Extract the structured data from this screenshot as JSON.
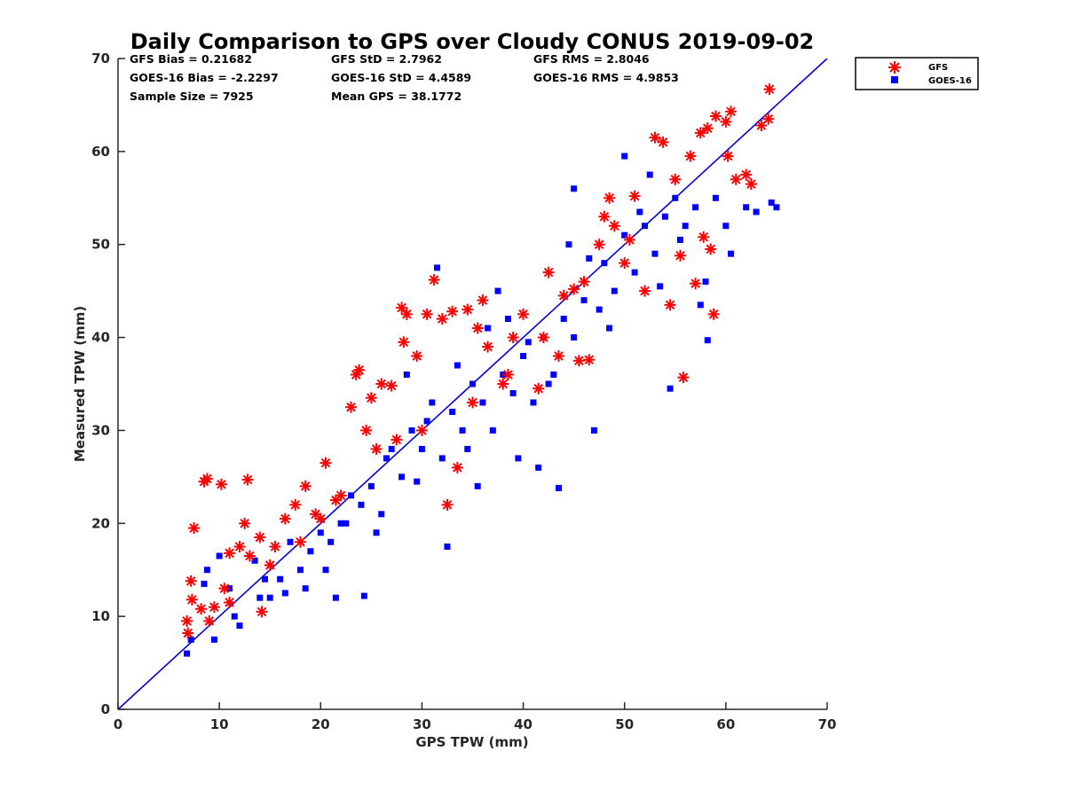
{
  "chart_data": {
    "type": "scatter",
    "title": "Daily Comparison to GPS over Cloudy CONUS 2019-09-02",
    "xlabel": "GPS TPW (mm)",
    "ylabel": "Measured TPW (mm)",
    "xlim": [
      0,
      70
    ],
    "ylim": [
      0,
      70
    ],
    "xticks": [
      "0",
      "10",
      "20",
      "30",
      "40",
      "50",
      "60",
      "70"
    ],
    "yticks": [
      "0",
      "10",
      "20",
      "30",
      "40",
      "50",
      "60",
      "70"
    ],
    "grid": false,
    "legend_position": "outside-top-right",
    "stats": [
      "GFS Bias = 0.21682",
      "GFS StD = 2.7962",
      "GFS RMS = 2.8046",
      "GOES-16 Bias = -2.2297",
      "GOES-16 StD = 4.4589",
      "GOES-16 RMS = 4.9853",
      "Sample Size = 7925",
      "Mean GPS = 38.1772"
    ],
    "reference_line": {
      "x": [
        0,
        70
      ],
      "y": [
        0,
        70
      ],
      "color": "#0000e0"
    },
    "series": [
      {
        "name": "GFS",
        "marker": "asterisk",
        "color": "#ff0000",
        "points": [
          [
            6.8,
            9.5
          ],
          [
            6.9,
            8.2
          ],
          [
            7.2,
            13.8
          ],
          [
            7.3,
            11.8
          ],
          [
            7.5,
            19.5
          ],
          [
            8.2,
            10.8
          ],
          [
            8.5,
            24.5
          ],
          [
            8.8,
            24.8
          ],
          [
            10.2,
            24.2
          ],
          [
            12.8,
            24.7
          ],
          [
            9.5,
            11.0
          ],
          [
            10.5,
            13.0
          ],
          [
            11.0,
            16.8
          ],
          [
            12.0,
            17.5
          ],
          [
            12.5,
            20.0
          ],
          [
            13.0,
            16.5
          ],
          [
            14.0,
            18.5
          ],
          [
            14.2,
            10.5
          ],
          [
            15.5,
            17.5
          ],
          [
            16.5,
            20.5
          ],
          [
            17.5,
            22.0
          ],
          [
            18.5,
            24.0
          ],
          [
            19.5,
            21.0
          ],
          [
            20.5,
            26.5
          ],
          [
            21.5,
            22.5
          ],
          [
            23.0,
            32.5
          ],
          [
            23.5,
            36.0
          ],
          [
            23.8,
            36.5
          ],
          [
            24.5,
            30.0
          ],
          [
            25.0,
            33.5
          ],
          [
            26.0,
            35.0
          ],
          [
            27.0,
            34.8
          ],
          [
            28.0,
            43.2
          ],
          [
            28.5,
            42.5
          ],
          [
            28.2,
            39.5
          ],
          [
            29.5,
            38.0
          ],
          [
            30.5,
            42.5
          ],
          [
            31.2,
            46.2
          ],
          [
            32.0,
            42.0
          ],
          [
            33.0,
            42.8
          ],
          [
            34.5,
            43.0
          ],
          [
            35.5,
            41.0
          ],
          [
            36.0,
            44.0
          ],
          [
            38.5,
            36.0
          ],
          [
            40.0,
            42.5
          ],
          [
            41.5,
            34.5
          ],
          [
            42.0,
            40.0
          ],
          [
            43.5,
            38.0
          ],
          [
            45.5,
            37.5
          ],
          [
            46.5,
            37.6
          ],
          [
            47.5,
            50.0
          ],
          [
            48.5,
            55.0
          ],
          [
            49.0,
            52.0
          ],
          [
            50.0,
            48.0
          ],
          [
            51.0,
            55.2
          ],
          [
            52.0,
            45.0
          ],
          [
            53.0,
            61.5
          ],
          [
            53.8,
            61.0
          ],
          [
            54.5,
            43.5
          ],
          [
            55.5,
            48.8
          ],
          [
            55.8,
            35.7
          ],
          [
            56.5,
            59.5
          ],
          [
            57.0,
            45.8
          ],
          [
            57.5,
            62.0
          ],
          [
            57.8,
            50.8
          ],
          [
            58.2,
            62.5
          ],
          [
            58.5,
            49.5
          ],
          [
            58.8,
            42.5
          ],
          [
            59.0,
            63.8
          ],
          [
            60.0,
            63.2
          ],
          [
            60.2,
            59.5
          ],
          [
            60.5,
            64.3
          ],
          [
            61.0,
            57.0
          ],
          [
            62.0,
            57.5
          ],
          [
            62.5,
            56.5
          ],
          [
            63.5,
            62.8
          ],
          [
            64.2,
            63.5
          ],
          [
            64.3,
            66.7
          ],
          [
            32.5,
            22.0
          ],
          [
            33.5,
            26.0
          ],
          [
            36.5,
            39.0
          ],
          [
            39.0,
            40.0
          ],
          [
            44.0,
            44.5
          ],
          [
            46.0,
            46.0
          ],
          [
            50.5,
            50.5
          ],
          [
            30.0,
            30.0
          ],
          [
            27.5,
            29.0
          ],
          [
            22.0,
            23.0
          ],
          [
            18.0,
            18.0
          ],
          [
            15.0,
            15.5
          ],
          [
            11.0,
            11.5
          ],
          [
            9.0,
            9.5
          ],
          [
            42.5,
            47.0
          ],
          [
            48.0,
            53.0
          ],
          [
            55.0,
            57.0
          ],
          [
            38.0,
            35.0
          ],
          [
            35.0,
            33.0
          ],
          [
            25.5,
            28.0
          ],
          [
            20.0,
            20.5
          ],
          [
            45.0,
            45.2
          ]
        ]
      },
      {
        "name": "GOES-16",
        "marker": "square",
        "color": "#0000ff",
        "points": [
          [
            6.8,
            6.0
          ],
          [
            7.2,
            7.5
          ],
          [
            8.5,
            13.5
          ],
          [
            8.8,
            15.0
          ],
          [
            9.5,
            7.5
          ],
          [
            10.0,
            16.5
          ],
          [
            11.0,
            13.0
          ],
          [
            12.0,
            9.0
          ],
          [
            13.5,
            16.0
          ],
          [
            14.0,
            12.0
          ],
          [
            15.0,
            12.0
          ],
          [
            16.0,
            14.0
          ],
          [
            17.0,
            18.0
          ],
          [
            18.0,
            15.0
          ],
          [
            19.0,
            17.0
          ],
          [
            20.0,
            19.0
          ],
          [
            21.0,
            18.0
          ],
          [
            21.5,
            12.0
          ],
          [
            22.0,
            20.0
          ],
          [
            23.0,
            23.0
          ],
          [
            24.0,
            22.0
          ],
          [
            24.3,
            12.2
          ],
          [
            25.0,
            24.0
          ],
          [
            26.0,
            21.0
          ],
          [
            27.0,
            28.0
          ],
          [
            28.0,
            25.0
          ],
          [
            28.5,
            36.0
          ],
          [
            29.0,
            30.0
          ],
          [
            30.0,
            28.0
          ],
          [
            31.0,
            33.0
          ],
          [
            31.5,
            47.5
          ],
          [
            32.0,
            27.0
          ],
          [
            32.5,
            17.5
          ],
          [
            33.0,
            32.0
          ],
          [
            34.0,
            30.0
          ],
          [
            35.0,
            35.0
          ],
          [
            36.0,
            33.0
          ],
          [
            37.0,
            30.0
          ],
          [
            37.5,
            45.0
          ],
          [
            38.0,
            36.0
          ],
          [
            39.0,
            34.0
          ],
          [
            40.0,
            38.0
          ],
          [
            41.0,
            33.0
          ],
          [
            41.5,
            26.0
          ],
          [
            42.0,
            40.0
          ],
          [
            43.0,
            36.0
          ],
          [
            43.5,
            23.8
          ],
          [
            44.0,
            42.0
          ],
          [
            45.0,
            40.0
          ],
          [
            46.0,
            44.0
          ],
          [
            47.0,
            30.0
          ],
          [
            47.5,
            43.0
          ],
          [
            48.0,
            48.0
          ],
          [
            49.0,
            45.0
          ],
          [
            50.0,
            51.0
          ],
          [
            51.0,
            47.0
          ],
          [
            52.0,
            52.0
          ],
          [
            53.0,
            49.0
          ],
          [
            54.0,
            53.0
          ],
          [
            54.5,
            34.5
          ],
          [
            55.0,
            55.0
          ],
          [
            56.0,
            52.0
          ],
          [
            57.0,
            54.0
          ],
          [
            58.0,
            46.0
          ],
          [
            59.0,
            55.0
          ],
          [
            60.0,
            52.0
          ],
          [
            60.5,
            49.0
          ],
          [
            62.0,
            54.0
          ],
          [
            63.0,
            53.5
          ],
          [
            64.5,
            54.5
          ],
          [
            65.0,
            54.0
          ],
          [
            50.0,
            59.5
          ],
          [
            45.0,
            56.0
          ],
          [
            52.5,
            57.5
          ],
          [
            57.5,
            43.5
          ],
          [
            58.2,
            39.7
          ],
          [
            40.5,
            39.5
          ],
          [
            36.5,
            41.0
          ],
          [
            33.5,
            37.0
          ],
          [
            30.5,
            31.0
          ],
          [
            26.5,
            27.0
          ],
          [
            22.5,
            20.0
          ],
          [
            18.5,
            13.0
          ],
          [
            14.5,
            14.0
          ],
          [
            11.5,
            10.0
          ],
          [
            39.5,
            27.0
          ],
          [
            35.5,
            24.0
          ],
          [
            42.5,
            35.0
          ],
          [
            48.5,
            41.0
          ],
          [
            53.5,
            45.5
          ],
          [
            44.5,
            50.0
          ],
          [
            38.5,
            42.0
          ],
          [
            34.5,
            28.0
          ],
          [
            29.5,
            24.5
          ],
          [
            25.5,
            19.0
          ],
          [
            20.5,
            15.0
          ],
          [
            16.5,
            12.5
          ],
          [
            46.5,
            48.5
          ],
          [
            51.5,
            53.5
          ],
          [
            55.5,
            50.5
          ]
        ]
      }
    ]
  }
}
